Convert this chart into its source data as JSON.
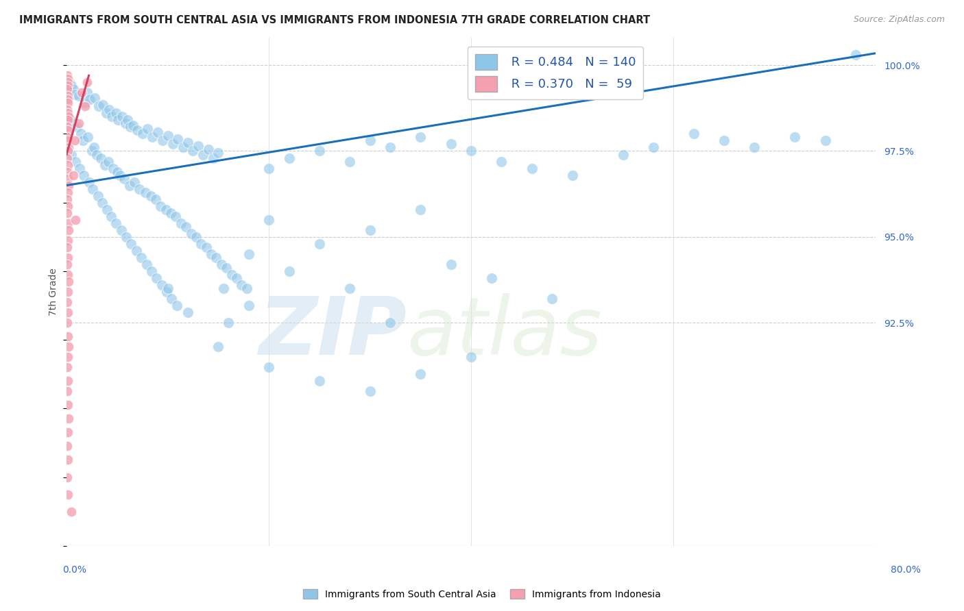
{
  "title": "IMMIGRANTS FROM SOUTH CENTRAL ASIA VS IMMIGRANTS FROM INDONESIA 7TH GRADE CORRELATION CHART",
  "source": "Source: ZipAtlas.com",
  "ylabel": "7th Grade",
  "xmin": 0.0,
  "xmax": 80.0,
  "ymin": 86.0,
  "ymax": 100.8,
  "yticks": [
    100.0,
    97.5,
    95.0,
    92.5
  ],
  "series1_label": "Immigrants from South Central Asia",
  "series1_color": "#8ec6e8",
  "series1_R": 0.484,
  "series1_N": 140,
  "series2_label": "Immigrants from Indonesia",
  "series2_color": "#f5a0b0",
  "series2_R": 0.37,
  "series2_N": 59,
  "line1_color": "#1a6fba",
  "line2_color": "#d44060",
  "watermark_zip": "ZIP",
  "watermark_atlas": "atlas",
  "background_color": "#ffffff",
  "grid_color": "#cccccc",
  "blue_scatter": [
    [
      0.3,
      99.5
    ],
    [
      0.5,
      99.4
    ],
    [
      0.7,
      99.3
    ],
    [
      0.8,
      99.15
    ],
    [
      1.2,
      99.1
    ],
    [
      1.8,
      98.9
    ],
    [
      2.0,
      99.2
    ],
    [
      2.3,
      99.0
    ],
    [
      2.8,
      99.05
    ],
    [
      3.2,
      98.8
    ],
    [
      3.6,
      98.85
    ],
    [
      3.9,
      98.6
    ],
    [
      4.2,
      98.7
    ],
    [
      4.5,
      98.5
    ],
    [
      4.9,
      98.6
    ],
    [
      5.1,
      98.4
    ],
    [
      5.5,
      98.5
    ],
    [
      5.8,
      98.3
    ],
    [
      6.0,
      98.4
    ],
    [
      6.3,
      98.2
    ],
    [
      6.6,
      98.25
    ],
    [
      7.0,
      98.1
    ],
    [
      7.5,
      98.0
    ],
    [
      8.0,
      98.15
    ],
    [
      8.5,
      97.9
    ],
    [
      9.0,
      98.05
    ],
    [
      9.5,
      97.8
    ],
    [
      10.0,
      97.95
    ],
    [
      10.5,
      97.7
    ],
    [
      11.0,
      97.85
    ],
    [
      11.5,
      97.6
    ],
    [
      12.0,
      97.75
    ],
    [
      12.5,
      97.5
    ],
    [
      13.0,
      97.65
    ],
    [
      13.5,
      97.4
    ],
    [
      14.0,
      97.55
    ],
    [
      14.5,
      97.3
    ],
    [
      15.0,
      97.45
    ],
    [
      0.4,
      98.4
    ],
    [
      0.6,
      98.3
    ],
    [
      1.0,
      98.2
    ],
    [
      1.4,
      98.0
    ],
    [
      1.6,
      97.8
    ],
    [
      2.1,
      97.9
    ],
    [
      2.5,
      97.5
    ],
    [
      2.7,
      97.6
    ],
    [
      3.0,
      97.4
    ],
    [
      3.4,
      97.3
    ],
    [
      3.8,
      97.1
    ],
    [
      4.1,
      97.2
    ],
    [
      4.6,
      97.0
    ],
    [
      5.0,
      96.9
    ],
    [
      5.3,
      96.8
    ],
    [
      5.7,
      96.7
    ],
    [
      6.2,
      96.5
    ],
    [
      6.7,
      96.6
    ],
    [
      7.2,
      96.4
    ],
    [
      7.8,
      96.3
    ],
    [
      8.3,
      96.2
    ],
    [
      8.8,
      96.1
    ],
    [
      9.3,
      95.9
    ],
    [
      9.8,
      95.8
    ],
    [
      10.3,
      95.7
    ],
    [
      10.8,
      95.6
    ],
    [
      11.3,
      95.4
    ],
    [
      11.8,
      95.3
    ],
    [
      12.3,
      95.1
    ],
    [
      12.8,
      95.0
    ],
    [
      13.3,
      94.8
    ],
    [
      13.8,
      94.7
    ],
    [
      14.3,
      94.5
    ],
    [
      14.8,
      94.4
    ],
    [
      15.3,
      94.2
    ],
    [
      15.8,
      94.1
    ],
    [
      16.3,
      93.9
    ],
    [
      16.8,
      93.8
    ],
    [
      17.3,
      93.6
    ],
    [
      17.8,
      93.5
    ],
    [
      0.2,
      97.5
    ],
    [
      0.5,
      97.4
    ],
    [
      0.9,
      97.2
    ],
    [
      1.3,
      97.0
    ],
    [
      1.7,
      96.8
    ],
    [
      2.2,
      96.6
    ],
    [
      2.6,
      96.4
    ],
    [
      3.1,
      96.2
    ],
    [
      3.5,
      96.0
    ],
    [
      4.0,
      95.8
    ],
    [
      4.4,
      95.6
    ],
    [
      4.9,
      95.4
    ],
    [
      5.4,
      95.2
    ],
    [
      5.9,
      95.0
    ],
    [
      6.4,
      94.8
    ],
    [
      6.9,
      94.6
    ],
    [
      7.4,
      94.4
    ],
    [
      7.9,
      94.2
    ],
    [
      8.4,
      94.0
    ],
    [
      8.9,
      93.8
    ],
    [
      9.4,
      93.6
    ],
    [
      9.9,
      93.4
    ],
    [
      10.4,
      93.2
    ],
    [
      10.9,
      93.0
    ],
    [
      15.5,
      93.5
    ],
    [
      18.0,
      93.0
    ],
    [
      20.0,
      97.0
    ],
    [
      22.0,
      97.3
    ],
    [
      25.0,
      97.5
    ],
    [
      28.0,
      97.2
    ],
    [
      30.0,
      97.8
    ],
    [
      32.0,
      97.6
    ],
    [
      35.0,
      97.9
    ],
    [
      38.0,
      97.7
    ],
    [
      40.0,
      97.5
    ],
    [
      43.0,
      97.2
    ],
    [
      46.0,
      97.0
    ],
    [
      50.0,
      96.8
    ],
    [
      55.0,
      97.4
    ],
    [
      58.0,
      97.6
    ],
    [
      62.0,
      98.0
    ],
    [
      65.0,
      97.8
    ],
    [
      68.0,
      97.6
    ],
    [
      72.0,
      97.9
    ],
    [
      75.0,
      97.8
    ],
    [
      78.0,
      100.3
    ],
    [
      20.0,
      95.5
    ],
    [
      25.0,
      94.8
    ],
    [
      30.0,
      95.2
    ],
    [
      35.0,
      95.8
    ],
    [
      18.0,
      94.5
    ],
    [
      22.0,
      94.0
    ],
    [
      28.0,
      93.5
    ],
    [
      38.0,
      94.2
    ],
    [
      42.0,
      93.8
    ],
    [
      48.0,
      93.2
    ],
    [
      32.0,
      92.5
    ],
    [
      40.0,
      91.5
    ],
    [
      15.0,
      91.8
    ],
    [
      20.0,
      91.2
    ],
    [
      25.0,
      90.8
    ],
    [
      30.0,
      90.5
    ],
    [
      35.0,
      91.0
    ],
    [
      12.0,
      92.8
    ],
    [
      16.0,
      92.5
    ],
    [
      10.0,
      93.5
    ]
  ],
  "pink_scatter": [
    [
      0.05,
      99.7
    ],
    [
      0.1,
      99.6
    ],
    [
      0.12,
      99.5
    ],
    [
      0.15,
      99.4
    ],
    [
      0.08,
      99.3
    ],
    [
      0.1,
      99.1
    ],
    [
      0.12,
      99.0
    ],
    [
      0.15,
      98.9
    ],
    [
      0.08,
      98.7
    ],
    [
      0.12,
      98.6
    ],
    [
      0.18,
      98.5
    ],
    [
      0.1,
      98.4
    ],
    [
      0.05,
      98.2
    ],
    [
      0.15,
      98.1
    ],
    [
      0.08,
      97.9
    ],
    [
      0.12,
      97.8
    ],
    [
      0.18,
      97.6
    ],
    [
      0.1,
      97.5
    ],
    [
      0.05,
      97.3
    ],
    [
      0.15,
      97.1
    ],
    [
      0.08,
      96.9
    ],
    [
      0.12,
      96.7
    ],
    [
      0.18,
      96.5
    ],
    [
      0.1,
      96.3
    ],
    [
      0.05,
      96.1
    ],
    [
      0.15,
      95.9
    ],
    [
      0.08,
      95.7
    ],
    [
      0.12,
      95.4
    ],
    [
      0.18,
      95.2
    ],
    [
      0.1,
      94.9
    ],
    [
      0.05,
      94.7
    ],
    [
      0.15,
      94.4
    ],
    [
      0.08,
      94.2
    ],
    [
      0.12,
      93.9
    ],
    [
      0.2,
      93.7
    ],
    [
      0.1,
      93.4
    ],
    [
      0.05,
      93.1
    ],
    [
      0.15,
      92.8
    ],
    [
      0.08,
      92.5
    ],
    [
      0.12,
      92.1
    ],
    [
      0.18,
      91.8
    ],
    [
      0.1,
      91.5
    ],
    [
      0.05,
      91.2
    ],
    [
      0.15,
      90.8
    ],
    [
      0.08,
      90.5
    ],
    [
      0.12,
      90.1
    ],
    [
      0.2,
      89.7
    ],
    [
      0.1,
      89.3
    ],
    [
      0.05,
      88.9
    ],
    [
      0.15,
      88.5
    ],
    [
      0.08,
      88.0
    ],
    [
      0.12,
      87.5
    ],
    [
      1.5,
      99.2
    ],
    [
      2.0,
      99.5
    ],
    [
      1.8,
      98.8
    ],
    [
      1.2,
      98.3
    ],
    [
      0.8,
      97.8
    ],
    [
      0.7,
      96.8
    ],
    [
      0.9,
      95.5
    ],
    [
      0.5,
      87.0
    ]
  ],
  "line1_x": [
    0.0,
    80.0
  ],
  "line1_y": [
    96.5,
    100.35
  ],
  "line2_x": [
    0.0,
    2.2
  ],
  "line2_y": [
    97.4,
    99.7
  ]
}
